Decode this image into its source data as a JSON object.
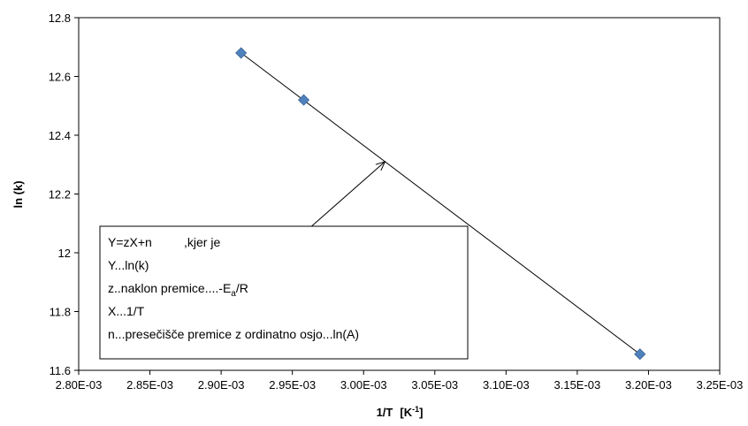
{
  "chart_data": {
    "type": "scatter",
    "xlabel": "1/T",
    "xlabel_unit": "[K",
    "xlabel_unit_exp": "-1",
    "xlabel_unit_close": "]",
    "ylabel": "ln (k)",
    "xlim": [
      0.0028,
      0.00325
    ],
    "ylim": [
      11.6,
      12.8
    ],
    "x_ticks": [
      "2.80E-03",
      "2.85E-03",
      "2.90E-03",
      "2.95E-03",
      "3.00E-03",
      "3.05E-03",
      "3.10E-03",
      "3.15E-03",
      "3.20E-03",
      "3.25E-03"
    ],
    "y_ticks": [
      "11.6",
      "11.8",
      "12",
      "12.2",
      "12.4",
      "12.6",
      "12.8"
    ],
    "points": [
      {
        "x": 0.002914,
        "y": 12.68
      },
      {
        "x": 0.002958,
        "y": 12.52
      },
      {
        "x": 0.003194,
        "y": 11.655
      }
    ],
    "trendline": {
      "x": [
        0.002914,
        0.003194
      ],
      "y": [
        12.68,
        11.655
      ]
    },
    "marker_color": "#4f81bd",
    "annotation": {
      "arrow_from": {
        "x": 0.00294,
        "y": 11.99
      },
      "arrow_to": {
        "x": 0.003015,
        "y": 12.31
      },
      "line1_left": "Y=zX+n",
      "line1_right": ",kjer je",
      "line2": "Y...ln(k)",
      "line3_pre": "z..naklon premice....-E",
      "line3_sub": "a",
      "line3_post": "/R",
      "line4": "X...1/T",
      "line5": "n...presečišče premice z ordinatno osjo...ln(A)"
    }
  }
}
